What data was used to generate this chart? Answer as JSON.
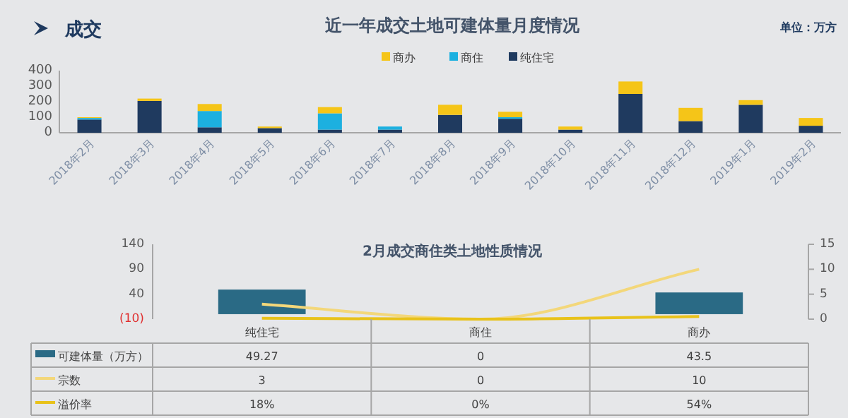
{
  "chart_data": [
    {
      "type": "bar",
      "title": "近一年成交土地可建体量月度情况",
      "annotations": [
        "成交",
        "单位：万方"
      ],
      "stacked": true,
      "legend": "top",
      "categories": [
        "2018年2月",
        "2018年3月",
        "2018年4月",
        "2018年5月",
        "2018年6月",
        "2018年7月",
        "2018年8月",
        "2018年9月",
        "2018年10月",
        "2018年11月",
        "2018年12月",
        "2019年1月",
        "2019年2月"
      ],
      "series": [
        {
          "name": "纯住宅",
          "color": "#1f3a5f",
          "values": [
            85,
            205,
            35,
            30,
            20,
            20,
            115,
            90,
            20,
            250,
            75,
            180,
            45
          ]
        },
        {
          "name": "商住",
          "color": "#1cb0e0",
          "values": [
            10,
            0,
            105,
            0,
            105,
            20,
            0,
            10,
            0,
            0,
            0,
            0,
            0
          ]
        },
        {
          "name": "商办",
          "color": "#f5c518",
          "values": [
            5,
            15,
            45,
            10,
            40,
            0,
            65,
            35,
            20,
            80,
            85,
            30,
            50
          ]
        }
      ],
      "ylim": [
        0,
        400
      ],
      "yticks": [
        0,
        100,
        200,
        300,
        400
      ]
    },
    {
      "type": "bar",
      "title": "2月成交商住类土地性质情况",
      "legend": "left",
      "categories": [
        "纯住宅",
        "商住",
        "商办"
      ],
      "series": [
        {
          "name": "可建体量（万方）",
          "type": "bar",
          "color": "#2a6a85",
          "values": [
            49.27,
            0,
            43.5
          ],
          "value_labels": [
            "49.27",
            "0",
            "43.5"
          ]
        },
        {
          "name": "宗数",
          "type": "line",
          "axis": "y2",
          "color": "#f3d77a",
          "values": [
            3,
            0,
            10
          ],
          "value_labels": [
            "3",
            "0",
            "10"
          ]
        },
        {
          "name": "溢价率",
          "type": "line",
          "axis": "y2",
          "color": "#e8c21a",
          "values": [
            0.18,
            0,
            0.54
          ],
          "value_labels": [
            "18%",
            "0%",
            "54%"
          ]
        }
      ],
      "ylim": [
        -10,
        140
      ],
      "yticks": [
        {
          "value": -10,
          "label": "(10)"
        },
        40,
        90,
        140
      ],
      "y2lim": [
        0,
        15
      ],
      "y2ticks": [
        0,
        5,
        10,
        15
      ]
    }
  ]
}
